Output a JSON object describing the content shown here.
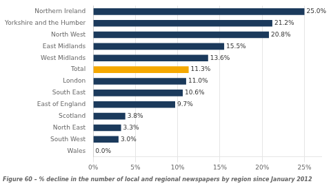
{
  "chart_data": {
    "type": "bar",
    "orientation": "horizontal",
    "title": "Figure 60 – % decline in the number of local and regional newspapers by region since January 2012",
    "categories": [
      "Wales",
      "South West",
      "North East",
      "Scotland",
      "East of England",
      "South East",
      "London",
      "Total",
      "West Midlands",
      "East Midlands",
      "North West",
      "Yorkshire and the Humber",
      "Northern Ireland"
    ],
    "values": [
      0.0,
      3.0,
      3.3,
      3.8,
      9.7,
      10.6,
      11.0,
      11.3,
      13.6,
      15.5,
      20.8,
      21.2,
      25.0
    ],
    "value_labels": [
      "0.0%",
      "3.0%",
      "3.3%",
      "3.8%",
      "9.7%",
      "10.6%",
      "11.0%",
      "11.3%",
      "13.6%",
      "15.5%",
      "20.8%",
      "21.2%",
      "25.0%"
    ],
    "colors": [
      "#1b3a5c",
      "#1b3a5c",
      "#1b3a5c",
      "#1b3a5c",
      "#1b3a5c",
      "#1b3a5c",
      "#1b3a5c",
      "#f5a800",
      "#1b3a5c",
      "#1b3a5c",
      "#1b3a5c",
      "#1b3a5c",
      "#1b3a5c"
    ],
    "xlim": [
      0,
      27
    ],
    "xticks": [
      {
        "value": 0,
        "label": "0%"
      },
      {
        "value": 5,
        "label": "5%"
      },
      {
        "value": 10,
        "label": "10%"
      },
      {
        "value": 15,
        "label": "15%"
      },
      {
        "value": 20,
        "label": "20%"
      },
      {
        "value": 25,
        "label": "25%"
      }
    ],
    "grid": true,
    "data_labels": true
  }
}
